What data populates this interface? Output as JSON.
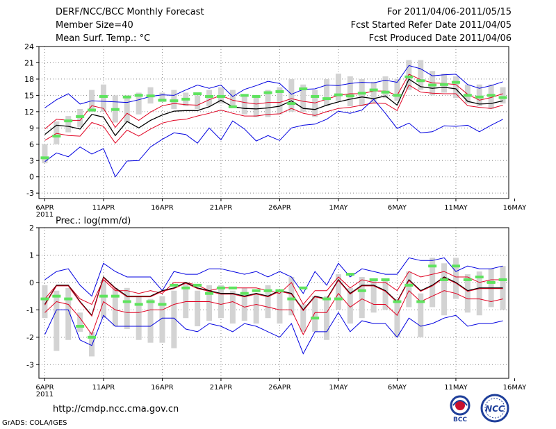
{
  "header": {
    "title": "DERF/NCC/BCC Monthly Forecast",
    "member_size": "Member Size=40",
    "variable": "Mean Surf. Temp.: °C",
    "period": "For 2011/04/06-2011/05/15",
    "start_date": "Fcst Started Refer Date 2011/04/05",
    "produced_date": "Fcst Produced Date 2011/04/06"
  },
  "footer": {
    "url": "http://cmdp.ncc.cma.gov.cn",
    "credit": "GrADS: COLA/IGES",
    "logo_bcc_text": "BCC",
    "logo_ncc_text": "NCC"
  },
  "colors": {
    "box": "#d3d3d3",
    "marker": "#5ee35e",
    "mean": "#000000",
    "spread": "#e00020",
    "extreme": "#0000e0",
    "grid": "#888888"
  },
  "chart_data": [
    {
      "type": "box-ensemble",
      "title": "Mean Surf. Temp.: °C",
      "x": [
        1,
        2,
        3,
        4,
        5,
        6,
        7,
        8,
        9,
        10,
        11,
        12,
        13,
        14,
        15,
        16,
        17,
        18,
        19,
        20,
        21,
        22,
        23,
        24,
        25,
        26,
        27,
        28,
        29,
        30,
        31,
        32,
        33,
        34,
        35,
        36,
        37,
        38,
        39,
        40
      ],
      "x_tick_labels": [
        "6APR",
        "11APR",
        "16APR",
        "21APR",
        "26APR",
        "1MAY",
        "6MAY",
        "11MAY",
        "16MAY"
      ],
      "x_tick_positions": [
        1,
        6,
        11,
        16,
        21,
        26,
        31,
        36,
        41
      ],
      "x_extra_label": "2011",
      "ylim": [
        -4,
        24
      ],
      "y_ticks": [
        -3,
        0,
        3,
        6,
        9,
        12,
        15,
        18,
        21,
        24
      ],
      "grid": true,
      "series": [
        {
          "name": "max",
          "values": [
            12.7,
            14.2,
            15.3,
            13.4,
            14.0,
            13.9,
            13.8,
            13.7,
            14.2,
            14.8,
            15.1,
            15.0,
            16.0,
            16.9,
            16.3,
            16.9,
            14.8,
            16.1,
            16.8,
            17.6,
            17.2,
            15.2,
            16.1,
            16.2,
            16.9,
            16.8,
            17.2,
            17.4,
            17.3,
            17.8,
            17.4,
            20.5,
            19.9,
            18.6,
            18.8,
            18.9,
            17.0,
            16.3,
            16.8,
            17.5
          ]
        },
        {
          "name": "upper",
          "values": [
            8.8,
            10.6,
            10.4,
            10.4,
            13.1,
            12.6,
            9.1,
            11.7,
            10.4,
            11.9,
            13.1,
            13.5,
            13.3,
            13.2,
            14.2,
            15.0,
            14.1,
            13.7,
            13.4,
            13.7,
            13.7,
            14.4,
            13.9,
            13.6,
            14.3,
            15.0,
            15.3,
            15.3,
            15.8,
            15.8,
            15.0,
            18.9,
            17.9,
            17.3,
            17.2,
            17.0,
            15.2,
            14.1,
            14.6,
            15.3
          ]
        },
        {
          "name": "mean",
          "values": [
            7.8,
            9.5,
            9.3,
            8.8,
            11.5,
            11.0,
            7.6,
            10.2,
            9.0,
            10.4,
            11.4,
            12.1,
            12.2,
            12.2,
            12.9,
            14.1,
            12.9,
            12.6,
            12.5,
            12.7,
            13.0,
            14.0,
            12.6,
            12.4,
            13.2,
            13.8,
            14.3,
            14.7,
            14.4,
            14.9,
            13.2,
            18.0,
            16.6,
            16.3,
            16.5,
            16.2,
            13.9,
            13.4,
            13.5,
            14.0
          ]
        },
        {
          "name": "lower",
          "values": [
            6.7,
            8.0,
            7.6,
            7.5,
            10.0,
            9.3,
            6.2,
            8.6,
            7.5,
            8.8,
            9.9,
            10.4,
            10.6,
            11.2,
            11.7,
            12.3,
            11.7,
            11.2,
            11.2,
            11.5,
            11.6,
            12.6,
            11.7,
            11.3,
            12.0,
            12.6,
            12.8,
            13.2,
            13.6,
            13.5,
            12.2,
            16.9,
            15.6,
            15.4,
            15.3,
            15.3,
            13.1,
            12.8,
            12.6,
            13.2
          ]
        },
        {
          "name": "min",
          "values": [
            2.8,
            4.4,
            3.7,
            5.5,
            4.2,
            5.2,
            0.0,
            2.9,
            3.0,
            5.5,
            6.9,
            8.1,
            7.8,
            6.2,
            9.0,
            6.8,
            10.3,
            8.8,
            6.6,
            7.6,
            6.7,
            9.0,
            9.5,
            9.7,
            10.6,
            12.1,
            11.7,
            12.3,
            14.3,
            11.7,
            8.9,
            9.9,
            8.1,
            8.3,
            9.4,
            9.3,
            9.5,
            8.3,
            9.5,
            10.6
          ]
        }
      ],
      "boxes": [
        [
          2.5,
          6
        ],
        [
          6,
          10.2
        ],
        [
          8.2,
          11.2
        ],
        [
          9.2,
          12.5
        ],
        [
          12,
          16
        ],
        [
          12,
          17
        ],
        [
          10,
          15
        ],
        [
          10,
          15
        ],
        [
          11.5,
          15.5
        ],
        [
          13.5,
          16.5
        ],
        [
          13.8,
          15.5
        ],
        [
          12.5,
          16
        ],
        [
          13,
          15.5
        ],
        [
          12.5,
          15
        ],
        [
          13,
          16
        ],
        [
          13.5,
          16.5
        ],
        [
          13,
          16
        ],
        [
          11.5,
          15
        ],
        [
          11,
          15
        ],
        [
          11,
          16
        ],
        [
          11.5,
          16.5
        ],
        [
          12,
          18
        ],
        [
          12,
          17
        ],
        [
          11,
          16
        ],
        [
          13,
          18
        ],
        [
          14,
          19
        ],
        [
          13,
          18.5
        ],
        [
          13,
          18
        ],
        [
          13.5,
          17.5
        ],
        [
          14.5,
          18.5
        ],
        [
          14,
          18
        ],
        [
          16,
          21.5
        ],
        [
          16,
          21.5
        ],
        [
          15,
          19.5
        ],
        [
          15.5,
          19
        ],
        [
          14.5,
          18.5
        ],
        [
          13.5,
          17
        ],
        [
          13,
          17
        ],
        [
          12.5,
          17
        ],
        [
          13.5,
          16.5
        ]
      ],
      "markers": [
        3.5,
        7.5,
        10.3,
        11.1,
        12.3,
        14.8,
        12.4,
        14.7,
        15.0,
        14.9,
        14.1,
        14.0,
        14.3,
        15.3,
        14.8,
        14.8,
        12.9,
        15.0,
        14.8,
        15.5,
        15.7,
        13.5,
        16.2,
        14.8,
        14.4,
        15.1,
        14.9,
        15.4,
        16.0,
        15.6,
        15.0,
        18.4,
        17.7,
        16.9,
        17.0,
        17.4,
        15.0,
        14.7,
        15.0,
        14.6
      ]
    },
    {
      "type": "box-ensemble",
      "title": "Prec.: log(mm/d)",
      "x": [
        1,
        2,
        3,
        4,
        5,
        6,
        7,
        8,
        9,
        10,
        11,
        12,
        13,
        14,
        15,
        16,
        17,
        18,
        19,
        20,
        21,
        22,
        23,
        24,
        25,
        26,
        27,
        28,
        29,
        30,
        31,
        32,
        33,
        34,
        35,
        36,
        37,
        38,
        39,
        40
      ],
      "x_tick_labels": [
        "6APR",
        "11APR",
        "16APR",
        "21APR",
        "26APR",
        "1MAY",
        "6MAY",
        "11MAY",
        "16MAY"
      ],
      "x_tick_positions": [
        1,
        6,
        11,
        16,
        21,
        26,
        31,
        36,
        41
      ],
      "x_extra_label": "2011",
      "ylim": [
        -3.5,
        2
      ],
      "y_ticks": [
        -3,
        -2,
        -1,
        0,
        1,
        2
      ],
      "grid": true,
      "series": [
        {
          "name": "max",
          "values": [
            0.1,
            0.4,
            0.5,
            -0.1,
            -0.5,
            0.7,
            0.4,
            0.2,
            0.2,
            0.2,
            -0.3,
            0.4,
            0.3,
            0.3,
            0.5,
            0.5,
            0.4,
            0.3,
            0.4,
            0.2,
            0.4,
            0.2,
            -0.4,
            0.4,
            -0.1,
            0.7,
            0.2,
            0.5,
            0.4,
            0.3,
            0.3,
            0.9,
            0.8,
            0.8,
            0.9,
            0.4,
            0.6,
            0.5,
            0.5,
            0.6
          ]
        },
        {
          "name": "upper",
          "values": [
            -0.6,
            -0.1,
            -0.1,
            -0.6,
            -0.8,
            0.1,
            -0.3,
            -0.3,
            -0.4,
            -0.3,
            -0.4,
            -0.0,
            -0.0,
            -0.1,
            -0.3,
            -0.2,
            -0.2,
            -0.2,
            -0.2,
            -0.3,
            -0.4,
            0.0,
            -0.8,
            -0.3,
            -0.3,
            0.2,
            -0.2,
            0.1,
            -0.0,
            0.0,
            -0.3,
            0.4,
            0.2,
            0.3,
            0.4,
            0.2,
            0.2,
            0.0,
            0.1,
            0.1
          ]
        },
        {
          "name": "mean",
          "values": [
            -0.8,
            -0.1,
            -0.1,
            -0.7,
            -1.2,
            0.2,
            -0.2,
            -0.5,
            -0.5,
            -0.5,
            -0.3,
            -0.2,
            0.0,
            -0.2,
            -0.3,
            -0.4,
            -0.4,
            -0.5,
            -0.4,
            -0.5,
            -0.3,
            -0.4,
            -1.0,
            -0.5,
            -0.6,
            0.1,
            -0.4,
            -0.1,
            -0.1,
            -0.3,
            -0.7,
            0.1,
            -0.3,
            -0.1,
            0.2,
            -0.0,
            -0.3,
            -0.2,
            -0.2,
            -0.2
          ]
        },
        {
          "name": "lower",
          "values": [
            -1.1,
            -0.7,
            -0.8,
            -1.3,
            -1.9,
            -0.7,
            -1.0,
            -1.1,
            -1.1,
            -1.0,
            -1.0,
            -0.8,
            -0.7,
            -0.7,
            -0.7,
            -0.8,
            -0.7,
            -0.9,
            -0.8,
            -0.9,
            -1.0,
            -1.0,
            -1.9,
            -1.1,
            -1.1,
            -0.4,
            -0.9,
            -0.6,
            -0.8,
            -0.8,
            -1.2,
            -0.3,
            -0.7,
            -0.5,
            -0.3,
            -0.4,
            -0.6,
            -0.6,
            -0.7,
            -0.6
          ]
        },
        {
          "name": "min",
          "values": [
            -1.9,
            -1.0,
            -1.0,
            -2.1,
            -2.3,
            -1.2,
            -1.6,
            -1.6,
            -1.6,
            -1.6,
            -1.3,
            -1.3,
            -1.7,
            -1.8,
            -1.5,
            -1.6,
            -1.8,
            -1.5,
            -1.6,
            -1.8,
            -2.0,
            -1.5,
            -2.6,
            -1.8,
            -1.8,
            -1.1,
            -1.8,
            -1.4,
            -1.5,
            -1.5,
            -2.0,
            -1.3,
            -1.6,
            -1.5,
            -1.3,
            -1.2,
            -1.6,
            -1.5,
            -1.5,
            -1.4
          ]
        },
        {
          "name": "mean_red",
          "values": [
            -0.8,
            -0.1,
            -0.1,
            -0.7,
            -1.2,
            0.2,
            -0.2,
            -0.5,
            -0.5,
            -0.5,
            -0.3,
            -0.2,
            0.0,
            -0.2,
            -0.3,
            -0.4,
            -0.4,
            -0.5,
            -0.4,
            -0.5,
            -0.3,
            -0.4,
            -1.0,
            -0.5,
            -0.6,
            0.1,
            -0.4,
            -0.1,
            -0.1,
            -0.3,
            -0.7,
            0.1,
            -0.3,
            -0.1,
            0.2,
            -0.0,
            -0.3,
            -0.2,
            -0.2,
            -0.2
          ]
        }
      ],
      "boxes": [
        [
          -1.3,
          -0.1
        ],
        [
          -2.5,
          -0.3
        ],
        [
          -2.1,
          -0.2
        ],
        [
          -1.8,
          -1.1
        ],
        [
          -2.7,
          -1.8
        ],
        [
          -1.3,
          0.1
        ],
        [
          -1.6,
          -0.2
        ],
        [
          -1.7,
          -0.2
        ],
        [
          -2.1,
          -0.5
        ],
        [
          -2.2,
          -0.6
        ],
        [
          -2.2,
          -0.5
        ],
        [
          -2.4,
          -0.3
        ],
        [
          -1.3,
          0.0
        ],
        [
          -1.6,
          -0.3
        ],
        [
          -1.4,
          -0.1
        ],
        [
          -1.3,
          -0.1
        ],
        [
          -1.5,
          -0.3
        ],
        [
          -1.4,
          -0.2
        ],
        [
          -1.5,
          -0.4
        ],
        [
          -1.3,
          -0.1
        ],
        [
          -1.5,
          -0.3
        ],
        [
          -1.2,
          0.2
        ],
        [
          -1.8,
          -0.8
        ],
        [
          -1.8,
          -0.5
        ],
        [
          -2.1,
          -0.5
        ],
        [
          -1.0,
          0.3
        ],
        [
          -1.5,
          -0.2
        ],
        [
          -1.3,
          0.2
        ],
        [
          -1.1,
          0.1
        ],
        [
          -1.0,
          0.1
        ],
        [
          -2.0,
          -0.6
        ],
        [
          -0.9,
          0.4
        ],
        [
          -2.0,
          -0.4
        ],
        [
          -0.9,
          0.9
        ],
        [
          -1.2,
          0.7
        ],
        [
          -0.6,
          0.9
        ],
        [
          -1.1,
          0.3
        ],
        [
          -1.2,
          0.4
        ],
        [
          -0.9,
          0.5
        ],
        [
          -1.0,
          0.6
        ]
      ],
      "markers": [
        -0.6,
        -0.5,
        -0.6,
        -1.6,
        -2.0,
        -0.5,
        -0.5,
        -0.7,
        -0.8,
        -0.7,
        -0.8,
        -0.1,
        -0.2,
        -0.1,
        -0.4,
        -0.2,
        -0.2,
        -0.4,
        -0.3,
        -0.3,
        -0.3,
        -0.6,
        -0.2,
        -1.3,
        -0.6,
        -0.6,
        0.3,
        -0.3,
        0.1,
        0.1,
        -0.7,
        -0.1,
        -0.7,
        0.6,
        0.1,
        0.6,
        0.1,
        0.2,
        0.0,
        0.1
      ]
    }
  ]
}
